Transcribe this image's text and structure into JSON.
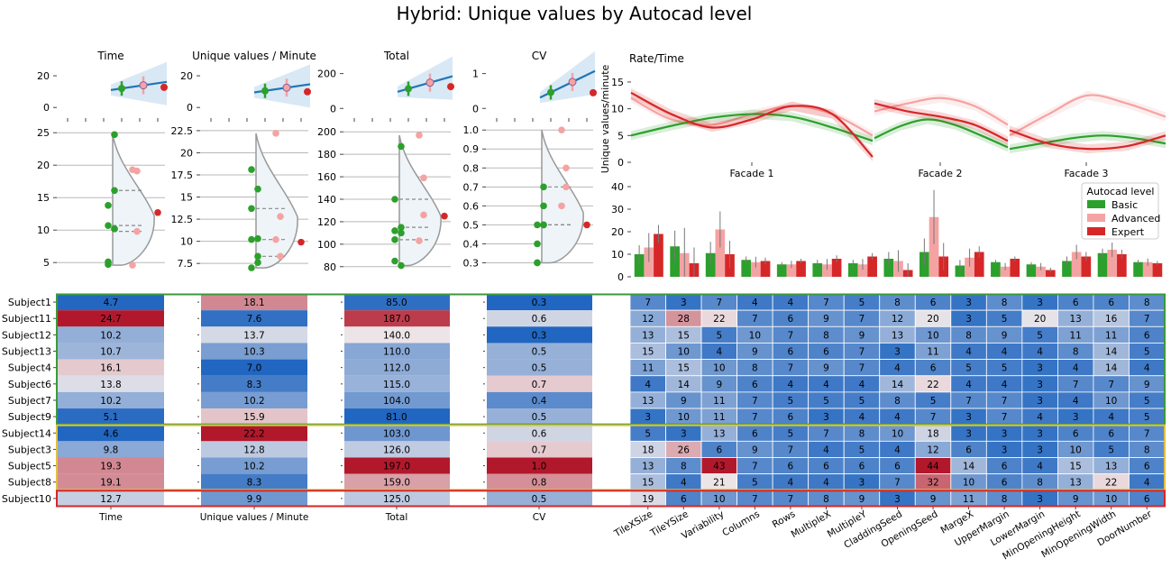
{
  "title": "Hybrid: Unique values by Autocad level",
  "colors": {
    "basic": "#2ca02c",
    "advanced": "#f4a3a3",
    "expert": "#d62728",
    "fit_line": "#1f77b4",
    "violin_fill": "#eef4f8",
    "violin_edge": "#999999",
    "group_basic_box": "#3a9a3a",
    "group_advanced_box": "#e0c040",
    "group_expert_box": "#d62728",
    "heat_low": "#2166c0",
    "heat_mid": "#ede8ea",
    "heat_high": "#b2182b"
  },
  "chart_data": [
    {
      "id": "trend",
      "type": "scatter",
      "panels": [
        {
          "name": "Time",
          "yticks": [
            0,
            20
          ],
          "ylim": [
            -5,
            28
          ],
          "points": [
            {
              "level": "Basic",
              "y": 12
            },
            {
              "level": "Advanced",
              "y": 14
            },
            {
              "level": "Expert",
              "y": 12.7
            }
          ]
        },
        {
          "name": "Unique values / Minute",
          "yticks": [
            0,
            20
          ],
          "ylim": [
            -5,
            28
          ],
          "points": [
            {
              "level": "Basic",
              "y": 10.5
            },
            {
              "level": "Advanced",
              "y": 12.5
            },
            {
              "level": "Expert",
              "y": 9.9
            }
          ]
        },
        {
          "name": "Total",
          "yticks": [
            0,
            200
          ],
          "ylim": [
            -40,
            260
          ],
          "points": [
            {
              "level": "Basic",
              "y": 113
            },
            {
              "level": "Advanced",
              "y": 148
            },
            {
              "level": "Expert",
              "y": 125
            }
          ]
        },
        {
          "name": "CV",
          "yticks": [
            0,
            1
          ],
          "ylim": [
            -0.2,
            1.3
          ],
          "points": [
            {
              "level": "Basic",
              "y": 0.46
            },
            {
              "level": "Advanced",
              "y": 0.76
            },
            {
              "level": "Expert",
              "y": 0.45
            }
          ]
        }
      ]
    },
    {
      "id": "violins",
      "type": "scatter",
      "panels": [
        {
          "name": "Time",
          "ylim": [
            3.5,
            26
          ],
          "yticks": [
            5,
            10,
            15,
            20,
            25
          ],
          "basic": [
            4.7,
            10.2,
            10.7,
            16.1,
            13.8,
            10.2,
            5.1,
            24.7
          ],
          "advanced": [
            4.6,
            9.8,
            19.3,
            19.1
          ],
          "expert": [
            12.7
          ]
        },
        {
          "name": "Unique values / Minute",
          "ylim": [
            6.5,
            23
          ],
          "yticks": [
            7.5,
            10.0,
            12.5,
            15.0,
            17.5,
            20.0,
            22.5
          ],
          "basic": [
            18.1,
            7.6,
            13.7,
            10.3,
            7.0,
            8.3,
            10.2,
            15.9
          ],
          "advanced": [
            22.2,
            12.8,
            10.2,
            8.3
          ],
          "expert": [
            9.9
          ]
        },
        {
          "name": "Total",
          "ylim": [
            75,
            205
          ],
          "yticks": [
            80,
            100,
            120,
            140,
            160,
            180,
            200
          ],
          "basic": [
            85,
            187,
            140,
            110,
            112,
            115,
            104,
            81
          ],
          "advanced": [
            103,
            126,
            197,
            159
          ],
          "expert": [
            125
          ]
        },
        {
          "name": "CV",
          "ylim": [
            0.25,
            1.02
          ],
          "yticks": [
            0.3,
            0.4,
            0.5,
            0.6,
            0.7,
            0.8,
            0.9,
            1.0
          ],
          "basic": [
            0.3,
            0.6,
            0.3,
            0.5,
            0.5,
            0.7,
            0.4,
            0.5
          ],
          "advanced": [
            0.6,
            0.7,
            1.0,
            0.8
          ],
          "expert": [
            0.5
          ]
        }
      ]
    },
    {
      "id": "rate_time",
      "type": "line",
      "title": "Rate/Time",
      "ylabel": "Unique values/minute",
      "yticks": [
        0,
        5,
        10,
        15
      ],
      "ylim": [
        0,
        16
      ],
      "facades": [
        "Facade 1",
        "Facade 2",
        "Facade 3"
      ],
      "series": [
        {
          "level": "Basic",
          "values": [
            [
              5,
              6.8,
              8.3,
              9,
              8.5,
              6.5,
              4
            ],
            [
              4.5,
              6.8,
              8,
              7,
              5,
              2.8
            ],
            [
              2.5,
              3.5,
              4.5,
              5,
              4.5,
              3.5
            ]
          ]
        },
        {
          "level": "Advanced",
          "values": [
            [
              12,
              8,
              7,
              9,
              10.5,
              9,
              5
            ],
            [
              9.5,
              11,
              12,
              10.5,
              7
            ],
            [
              5,
              9,
              12.5,
              11,
              8.5
            ]
          ]
        },
        {
          "level": "Expert",
          "values": [
            [
              13,
              9,
              6.5,
              8,
              10.5,
              9,
              1
            ],
            [
              11,
              9.5,
              8.5,
              7,
              4
            ],
            [
              6,
              3.5,
              2.5,
              3,
              5
            ]
          ]
        }
      ]
    },
    {
      "id": "params",
      "type": "bar",
      "yticks": [
        0,
        10,
        20,
        30,
        40
      ],
      "ylim": [
        0,
        42
      ],
      "legend_title": "Autocad level",
      "legend_position": "top-right",
      "series": [
        {
          "name": "Basic",
          "values": [
            10,
            13.5,
            10.5,
            7.5,
            5.5,
            6,
            6,
            8,
            11,
            5,
            6.5,
            5.5,
            7,
            10.5,
            6.5
          ]
        },
        {
          "name": "Advanced",
          "values": [
            13,
            10.5,
            21,
            6.5,
            5.5,
            5.5,
            5.5,
            7,
            26.5,
            8.5,
            4.5,
            4.5,
            11,
            12,
            6.5
          ]
        },
        {
          "name": "Expert",
          "values": [
            19,
            6,
            10,
            7,
            7,
            8,
            9,
            3,
            9,
            11,
            8,
            3,
            9,
            10,
            6
          ]
        }
      ]
    },
    {
      "id": "metrics_heatmap",
      "type": "heatmap",
      "rows": [
        "Subject1",
        "Subject11",
        "Subject12",
        "Subject13",
        "Subject4",
        "Subject6",
        "Subject7",
        "Subject9",
        "Subject14",
        "Subject3",
        "Subject5",
        "Subject8",
        "Subject10"
      ],
      "columns": [
        "Time",
        "Unique values / Minute",
        "Total",
        "CV"
      ],
      "values": [
        [
          "4.7",
          "18.1",
          "85.0",
          "0.3"
        ],
        [
          "24.7",
          "7.6",
          "187.0",
          "0.6"
        ],
        [
          "10.2",
          "13.7",
          "140.0",
          "0.3"
        ],
        [
          "10.7",
          "10.3",
          "110.0",
          "0.5"
        ],
        [
          "16.1",
          "7.0",
          "112.0",
          "0.5"
        ],
        [
          "13.8",
          "8.3",
          "115.0",
          "0.7"
        ],
        [
          "10.2",
          "10.2",
          "104.0",
          "0.4"
        ],
        [
          "5.1",
          "15.9",
          "81.0",
          "0.5"
        ],
        [
          "4.6",
          "22.2",
          "103.0",
          "0.6"
        ],
        [
          "9.8",
          "12.8",
          "126.0",
          "0.7"
        ],
        [
          "19.3",
          "10.2",
          "197.0",
          "1.0"
        ],
        [
          "19.1",
          "8.3",
          "159.0",
          "0.8"
        ],
        [
          "12.7",
          "9.9",
          "125.0",
          "0.5"
        ]
      ],
      "groups": [
        {
          "level": "Basic",
          "rows": 8
        },
        {
          "level": "Advanced",
          "rows": 4
        },
        {
          "level": "Expert",
          "rows": 1
        }
      ]
    },
    {
      "id": "param_heatmap",
      "type": "heatmap",
      "columns": [
        "TileXSize",
        "TileYSize",
        "Variability",
        "Columns",
        "Rows",
        "MultipleX",
        "MultipleY",
        "CladdingSeed",
        "OpeningSeed",
        "MargeX",
        "UpperMargin",
        "LowerMargin",
        "MinOpeningHeight",
        "MinOpeningWidth",
        "DoorNumber"
      ],
      "values": [
        [
          7,
          3,
          7,
          4,
          4,
          7,
          5,
          8,
          6,
          3,
          8,
          3,
          6,
          6,
          8
        ],
        [
          12,
          28,
          22,
          7,
          6,
          9,
          7,
          12,
          20,
          3,
          5,
          20,
          13,
          16,
          7
        ],
        [
          13,
          15,
          5,
          10,
          7,
          8,
          9,
          13,
          10,
          8,
          9,
          5,
          11,
          11,
          6
        ],
        [
          15,
          10,
          4,
          9,
          6,
          6,
          7,
          3,
          11,
          4,
          4,
          4,
          8,
          14,
          5
        ],
        [
          11,
          15,
          10,
          8,
          7,
          9,
          7,
          4,
          6,
          5,
          5,
          3,
          4,
          14,
          4
        ],
        [
          4,
          14,
          9,
          6,
          4,
          4,
          4,
          14,
          22,
          4,
          4,
          3,
          7,
          7,
          9
        ],
        [
          13,
          9,
          11,
          7,
          5,
          5,
          5,
          8,
          5,
          7,
          7,
          3,
          4,
          10,
          5
        ],
        [
          3,
          10,
          11,
          7,
          6,
          3,
          4,
          4,
          7,
          3,
          7,
          4,
          3,
          4,
          5
        ],
        [
          5,
          3,
          13,
          6,
          5,
          7,
          8,
          10,
          18,
          3,
          3,
          3,
          6,
          6,
          7
        ],
        [
          18,
          26,
          6,
          9,
          7,
          4,
          5,
          4,
          12,
          6,
          3,
          3,
          10,
          5,
          8
        ],
        [
          13,
          8,
          43,
          7,
          6,
          6,
          6,
          6,
          44,
          14,
          6,
          4,
          15,
          13,
          6
        ],
        [
          15,
          4,
          21,
          5,
          4,
          4,
          3,
          7,
          32,
          10,
          6,
          8,
          13,
          22,
          4
        ],
        [
          19,
          6,
          10,
          7,
          7,
          8,
          9,
          3,
          9,
          11,
          8,
          3,
          9,
          10,
          6
        ]
      ]
    }
  ]
}
